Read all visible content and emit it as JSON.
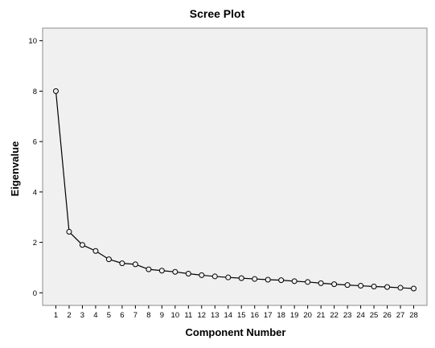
{
  "chart_data": {
    "type": "line",
    "title": "Scree Plot",
    "xlabel": "Component Number",
    "ylabel": "Eigenvalue",
    "x": [
      1,
      2,
      3,
      4,
      5,
      6,
      7,
      8,
      9,
      10,
      11,
      12,
      13,
      14,
      15,
      16,
      17,
      18,
      19,
      20,
      21,
      22,
      23,
      24,
      25,
      26,
      27,
      28
    ],
    "y": [
      8.0,
      2.42,
      1.9,
      1.66,
      1.33,
      1.17,
      1.13,
      0.93,
      0.88,
      0.83,
      0.76,
      0.7,
      0.65,
      0.61,
      0.58,
      0.55,
      0.52,
      0.5,
      0.46,
      0.43,
      0.38,
      0.34,
      0.31,
      0.28,
      0.25,
      0.23,
      0.2,
      0.17
    ],
    "xlim": [
      0,
      29
    ],
    "ylim": [
      -0.5,
      10.5
    ],
    "yticks": [
      0,
      2,
      4,
      6,
      8,
      10
    ],
    "grid": false,
    "colors": {
      "plot_background": "#f0f0f0",
      "line": "#000000",
      "marker": "#000000"
    }
  }
}
